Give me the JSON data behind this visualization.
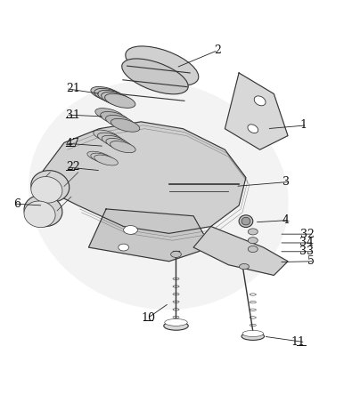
{
  "bg_color": "#f2f2f2",
  "fig_bg": "#ffffff",
  "underlined_labels": [
    "31",
    "47",
    "22",
    "10",
    "11"
  ],
  "font_size": 9,
  "label_positions": {
    "2": {
      "lpos": [
        0.62,
        0.945
      ],
      "tpos": [
        0.5,
        0.895
      ]
    },
    "21": {
      "lpos": [
        0.185,
        0.835
      ],
      "tpos": [
        0.285,
        0.82
      ]
    },
    "1": {
      "lpos": [
        0.875,
        0.73
      ],
      "tpos": [
        0.76,
        0.72
      ]
    },
    "31": {
      "lpos": [
        0.185,
        0.76
      ],
      "tpos": [
        0.295,
        0.755
      ]
    },
    "47": {
      "lpos": [
        0.185,
        0.678
      ],
      "tpos": [
        0.295,
        0.67
      ]
    },
    "22": {
      "lpos": [
        0.185,
        0.61
      ],
      "tpos": [
        0.285,
        0.6
      ]
    },
    "3": {
      "lpos": [
        0.825,
        0.568
      ],
      "tpos": [
        0.67,
        0.555
      ]
    },
    "6": {
      "lpos": [
        0.035,
        0.505
      ],
      "tpos": [
        0.12,
        0.5
      ]
    },
    "4": {
      "lpos": [
        0.825,
        0.458
      ],
      "tpos": [
        0.725,
        0.452
      ]
    },
    "32": {
      "lpos": [
        0.895,
        0.418
      ],
      "tpos": [
        0.795,
        0.418
      ]
    },
    "34": {
      "lpos": [
        0.895,
        0.393
      ],
      "tpos": [
        0.795,
        0.393
      ]
    },
    "33": {
      "lpos": [
        0.895,
        0.368
      ],
      "tpos": [
        0.795,
        0.368
      ]
    },
    "5": {
      "lpos": [
        0.895,
        0.34
      ],
      "tpos": [
        0.795,
        0.338
      ]
    },
    "10": {
      "lpos": [
        0.42,
        0.178
      ],
      "tpos": [
        0.48,
        0.22
      ]
    },
    "11": {
      "lpos": [
        0.87,
        0.108
      ],
      "tpos": [
        0.75,
        0.125
      ]
    }
  }
}
